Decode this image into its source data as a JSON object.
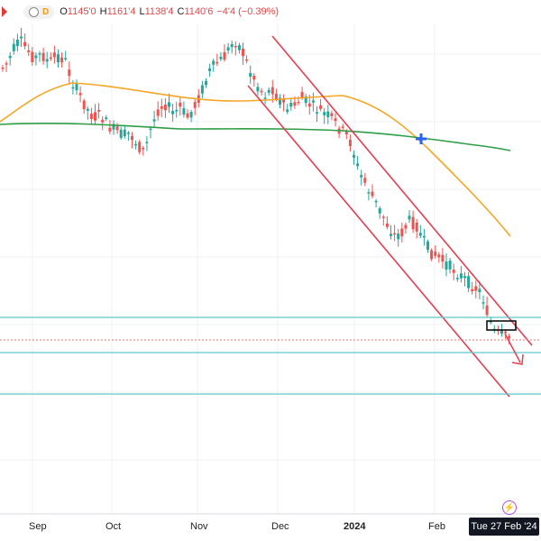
{
  "header": {
    "display_toggle_label": "D",
    "open": "1145'0",
    "high": "1161'4",
    "low": "1138'4",
    "close": "1140'6",
    "change": "−4'4 (−0.39%)",
    "labels": {
      "open": "O",
      "high": "H",
      "low": "L",
      "close": "C"
    }
  },
  "colors": {
    "up": "#26a69a",
    "down": "#ef5350",
    "ma_fast": "#f5a623",
    "ma_slow": "#2e9d46",
    "channel": "#e04050",
    "level_lines": "#5fc7cf",
    "crosshair": "#e57373",
    "cross_marker": "#2962ff"
  },
  "date_badge": "Tue 27 Feb '24",
  "chart_data": {
    "type": "candlestick",
    "x_axis_labels": [
      {
        "label": "Sep",
        "year": false
      },
      {
        "label": "Oct",
        "year": false
      },
      {
        "label": "Nov",
        "year": false
      },
      {
        "label": "Dec",
        "year": false
      },
      {
        "label": "2024",
        "year": true
      },
      {
        "label": "Feb",
        "year": false
      }
    ],
    "price_axis_visible": false,
    "grid": true,
    "overlays": [
      "moving_average_fast (orange)",
      "moving_average_slow (green)",
      "descending_channel (red, two parallel lines)",
      "horizontal_levels (cyan, three)",
      "current_price_dotted_line",
      "crossover_marker (blue cross)",
      "projection_arrow (red)",
      "highlight_box_on_recent_candles"
    ],
    "note": "Bushel soybean-style daily chart with strong downtrend inside channel"
  }
}
